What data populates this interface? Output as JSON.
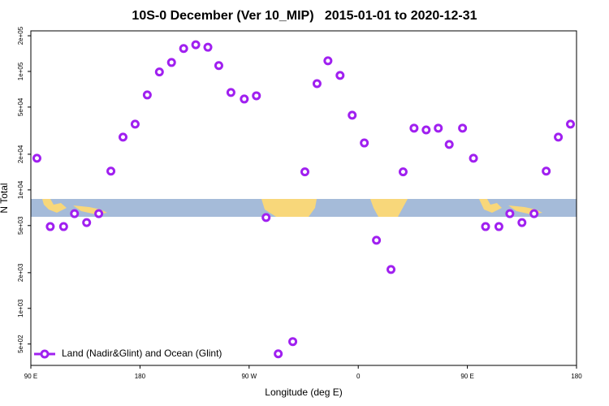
{
  "chart_data": {
    "type": "scatter",
    "title": "10S-0 December (Ver 10_MIP)   2015-01-01 to 2020-12-31",
    "x_label": "Longitude (deg E)",
    "y_label": "N Total",
    "xlim": [
      90,
      540
    ],
    "xticks": [
      {
        "value": 90,
        "label": "90 E"
      },
      180,
      {
        "value": 270,
        "label": "90 W"
      },
      {
        "value": 360,
        "label": "0"
      },
      {
        "value": 450,
        "label": "90 E"
      },
      {
        "value": 540,
        "label": "180"
      }
    ],
    "ylim": [
      330,
      220000
    ],
    "log_y": true,
    "yticks": [
      {
        "value": 500,
        "label": "5e+02"
      },
      {
        "value": 1000,
        "label": "1e+03"
      },
      {
        "value": 2000,
        "label": "2e+03"
      },
      {
        "value": 5000,
        "label": "5e+03"
      },
      {
        "value": 10000,
        "label": "1e+04"
      },
      {
        "value": 20000,
        "label": "2e+04"
      },
      {
        "value": 50000,
        "label": "5e+04"
      },
      {
        "value": 100000,
        "label": "1e+05"
      },
      {
        "value": 200000,
        "label": "2e+05"
      }
    ],
    "legend": "bottom left",
    "series": [
      {
        "name": "Land (Nadir&Glint) and Ocean (Glint)",
        "color": "#a020f0",
        "x": [
          95,
          106,
          117,
          126,
          136,
          146,
          156,
          166,
          176,
          186,
          196,
          206,
          216,
          226,
          236,
          245,
          255,
          266,
          276,
          284,
          294,
          306,
          316,
          326,
          335,
          345,
          355,
          365,
          375,
          387,
          397,
          406,
          416,
          426,
          435,
          446,
          455,
          465,
          476,
          485,
          495,
          505,
          515,
          525,
          535
        ],
        "values": [
          18500,
          4900,
          4900,
          6300,
          5300,
          6300,
          14400,
          27900,
          35900,
          63300,
          99000,
          119000,
          156000,
          168000,
          160000,
          112000,
          66400,
          58500,
          62300,
          5850,
          413,
          524,
          14200,
          78900,
          123000,
          92500,
          42700,
          24900,
          3760,
          2130,
          14200,
          33200,
          32100,
          33200,
          24200,
          33200,
          18500,
          4900,
          4900,
          6300,
          5300,
          6300,
          14400,
          27900,
          35900
        ]
      }
    ]
  }
}
